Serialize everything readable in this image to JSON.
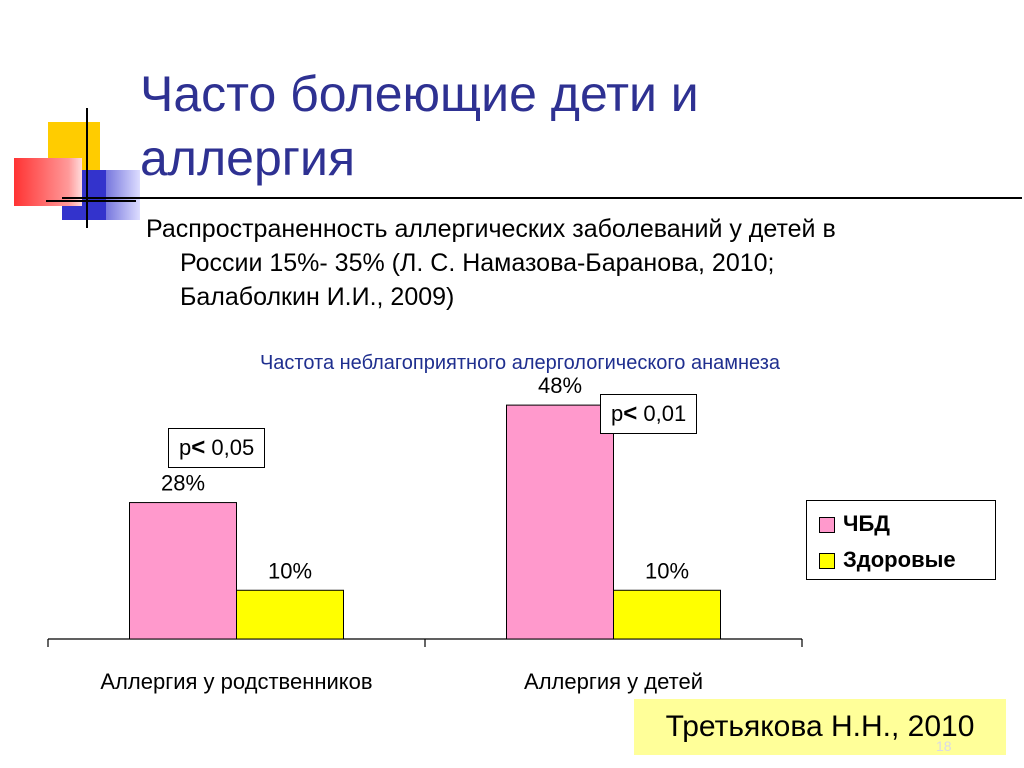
{
  "slide": {
    "title_line1": "Часто болеющие дети и",
    "title_line2": "аллергия",
    "subtitle_line1": "Распространенность аллергических заболеваний у детей в",
    "subtitle_line2": "России 15%- 35% (Л. С. Намазова-Баранова, 2010;",
    "subtitle_line3": "Балаболкин И.И., 2009)",
    "source": "Третьякова Н.Н., 2010",
    "slide_number": "18"
  },
  "annotations": {
    "p1_prefix": "р",
    "p1_symbol": "<",
    "p1_value": " 0,05",
    "p2_prefix": "р",
    "p2_symbol": "<",
    "p2_value": " 0,01"
  },
  "colors": {
    "title": "#2e3192",
    "series_chbd": "#ff99cc",
    "series_healthy": "#ffff00",
    "source_bg": "#ffff99"
  },
  "chart_data": {
    "type": "bar",
    "title": "Частота неблагоприятного алергологического анамнеза",
    "categories": [
      "Аллергия у родственников",
      "Аллергия у детей"
    ],
    "series": [
      {
        "name": "ЧБД",
        "values": [
          28,
          48
        ],
        "labels": [
          "28%",
          "48%"
        ],
        "color": "#ff99cc"
      },
      {
        "name": "Здоровые",
        "values": [
          10,
          10
        ],
        "labels": [
          "10%",
          "10%"
        ],
        "color": "#ffff00"
      }
    ],
    "ylim": [
      0,
      55
    ],
    "grid": false,
    "legend": "right"
  }
}
